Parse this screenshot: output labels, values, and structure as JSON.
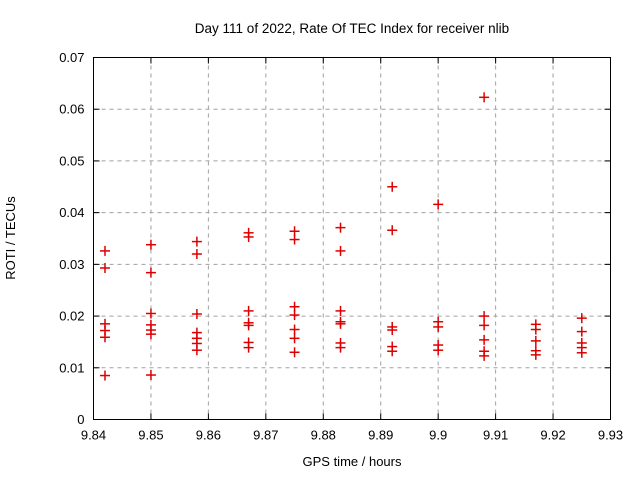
{
  "window": {
    "background": "#ffffff"
  },
  "chart_data": {
    "type": "scatter",
    "title": "Day 111 of 2022, Rate Of TEC Index for receiver nlib",
    "xlabel": "GPS time / hours",
    "ylabel": "ROTI / TECUs",
    "xlim": [
      9.84,
      9.93
    ],
    "ylim": [
      0,
      0.07
    ],
    "xticks": {
      "values": [
        9.84,
        9.85,
        9.86,
        9.87,
        9.88,
        9.89,
        9.9,
        9.91,
        9.92,
        9.93
      ],
      "labels": [
        "9.84",
        "9.85",
        "9.86",
        "9.87",
        "9.88",
        "9.89",
        "9.9",
        "9.91",
        "9.92",
        "9.93"
      ]
    },
    "yticks": {
      "values": [
        0,
        0.01,
        0.02,
        0.03,
        0.04,
        0.05,
        0.06,
        0.07
      ],
      "labels": [
        "0",
        "0.01",
        "0.02",
        "0.03",
        "0.04",
        "0.05",
        "0.06",
        "0.07"
      ]
    },
    "grid": true,
    "grid_color": "#a0a0a0",
    "axis_color": "#000000",
    "legend": "none",
    "marker": {
      "shape": "plus",
      "color": "#dd0000",
      "half_size": 5,
      "stroke_width": 1.5
    },
    "series": [
      {
        "name": "ROTI",
        "columns": [
          {
            "x": 9.842,
            "y": [
              0.0326,
              0.0293,
              0.0185,
              0.0172,
              0.0159,
              0.0085
            ]
          },
          {
            "x": 9.85,
            "y": [
              0.0338,
              0.0284,
              0.0205,
              0.0183,
              0.0173,
              0.0165,
              0.0086
            ]
          },
          {
            "x": 9.858,
            "y": [
              0.0344,
              0.032,
              0.0204,
              0.0168,
              0.0157,
              0.0147,
              0.0134
            ]
          },
          {
            "x": 9.867,
            "y": [
              0.0361,
              0.0353,
              0.021,
              0.0187,
              0.0182,
              0.0149,
              0.0139
            ]
          },
          {
            "x": 9.875,
            "y": [
              0.0364,
              0.0348,
              0.0218,
              0.0202,
              0.0174,
              0.0157,
              0.013
            ]
          },
          {
            "x": 9.883,
            "y": [
              0.0371,
              0.0326,
              0.021,
              0.0189,
              0.0185,
              0.0148,
              0.0139
            ]
          },
          {
            "x": 9.892,
            "y": [
              0.045,
              0.0366,
              0.0179,
              0.0173,
              0.0141,
              0.0132
            ]
          },
          {
            "x": 9.9,
            "y": [
              0.0416,
              0.0189,
              0.0179,
              0.0144,
              0.0134
            ]
          },
          {
            "x": 9.908,
            "y": [
              0.0623,
              0.02,
              0.0182,
              0.0154,
              0.0132,
              0.0123
            ]
          },
          {
            "x": 9.917,
            "y": [
              0.0184,
              0.0174,
              0.0152,
              0.0133,
              0.0125
            ]
          },
          {
            "x": 9.925,
            "y": [
              0.0196,
              0.017,
              0.0148,
              0.0139,
              0.0129
            ]
          }
        ]
      }
    ]
  }
}
